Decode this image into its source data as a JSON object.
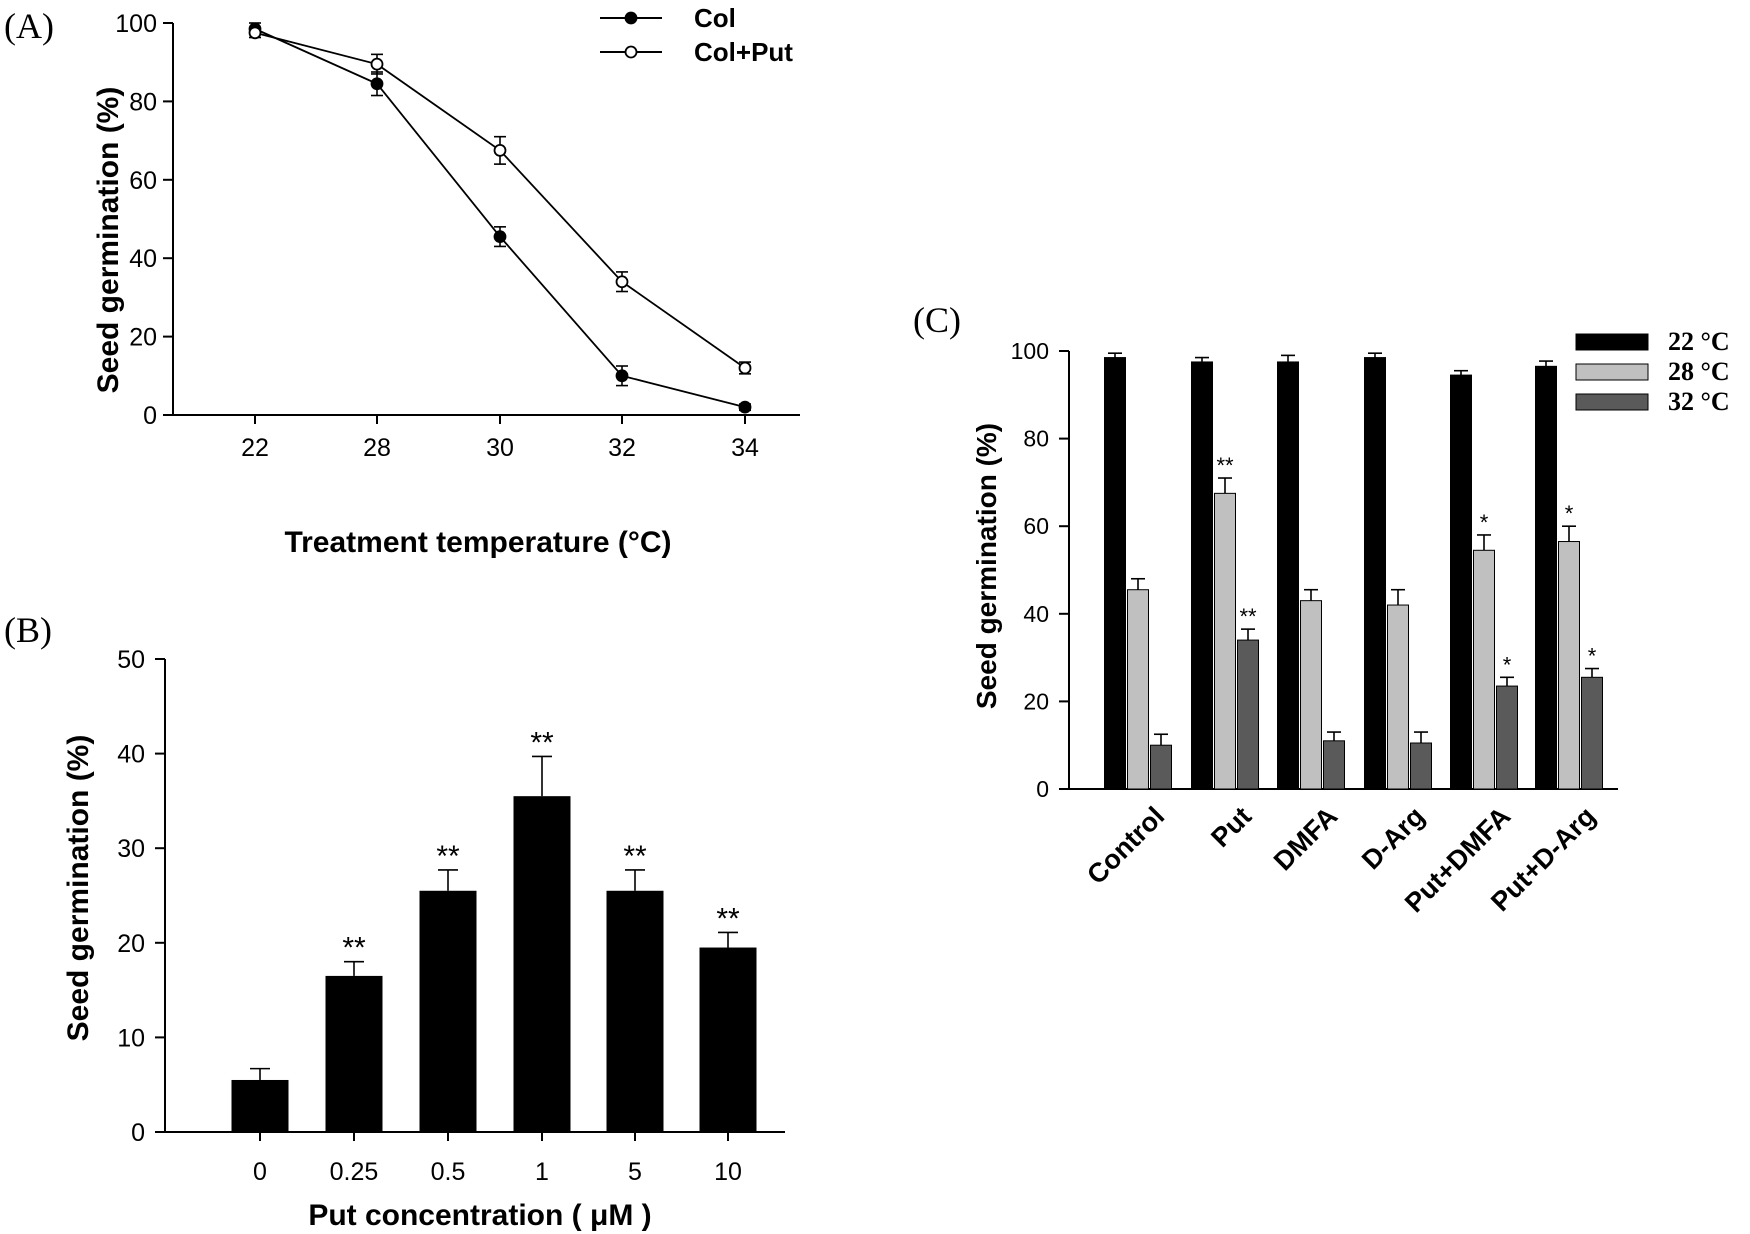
{
  "panels": {
    "a": {
      "label": "(A)"
    },
    "b": {
      "label": "(B)"
    },
    "c": {
      "label": "(C)"
    }
  },
  "chart_data": [
    {
      "panel": "(A)",
      "type": "line",
      "xlabel": "Treatment temperature (°C)",
      "ylabel": "Seed germination (%)",
      "x": [
        "22",
        "28",
        "30",
        "32",
        "34"
      ],
      "ylim": [
        0,
        100
      ],
      "yticks": [
        0,
        20,
        40,
        60,
        80,
        100
      ],
      "legend_position": "top-right",
      "series": [
        {
          "name": "Col",
          "marker": "filled-circle",
          "values": [
            98.5,
            84.5,
            45.5,
            10,
            2
          ],
          "errors": [
            1.5,
            3,
            2.5,
            2.5,
            0.8
          ]
        },
        {
          "name": "Col+Put",
          "marker": "open-circle",
          "values": [
            97.5,
            89.5,
            67.5,
            34,
            12
          ],
          "errors": [
            1.2,
            2.5,
            3.5,
            2.5,
            1.5
          ]
        }
      ]
    },
    {
      "panel": "(B)",
      "type": "bar",
      "xlabel": "Put concentration ( μM )",
      "ylabel": "Seed germination (%)",
      "categories": [
        "0",
        "0.25",
        "0.5",
        "1",
        "5",
        "10"
      ],
      "values": [
        5.5,
        16.5,
        25.5,
        35.5,
        25.5,
        19.5
      ],
      "errors": [
        1.2,
        1.5,
        2.2,
        4.2,
        2.2,
        1.6
      ],
      "significance": [
        "",
        "**",
        "**",
        "**",
        "**",
        "**"
      ],
      "ylim": [
        0,
        50
      ],
      "yticks": [
        0,
        10,
        20,
        30,
        40,
        50
      ],
      "color": "#000000"
    },
    {
      "panel": "(C)",
      "type": "bar",
      "ylabel": "Seed germination (%)",
      "categories": [
        "Control",
        "Put",
        "DMFA",
        "D-Arg",
        "Put+DMFA",
        "Put+D-Arg"
      ],
      "ylim": [
        0,
        100
      ],
      "yticks": [
        0,
        20,
        40,
        60,
        80,
        100
      ],
      "legend_position": "top-right",
      "series": [
        {
          "name": "22 °C",
          "color": "#000000",
          "values": [
            98.5,
            97.5,
            97.5,
            98.5,
            94.5,
            96.5
          ],
          "errors": [
            1,
            1,
            1.5,
            1,
            1,
            1.2
          ],
          "significance": [
            "",
            "",
            "",
            "",
            "",
            ""
          ]
        },
        {
          "name": "28 °C",
          "color": "#c0c0c0",
          "values": [
            45.5,
            67.5,
            43,
            42,
            54.5,
            56.5
          ],
          "errors": [
            2.5,
            3.5,
            2.5,
            3.5,
            3.5,
            3.5
          ],
          "significance": [
            "",
            "**",
            "",
            "",
            "*",
            "*"
          ]
        },
        {
          "name": "32 °C",
          "color": "#5a5a5a",
          "values": [
            10,
            34,
            11,
            10.5,
            23.5,
            25.5
          ],
          "errors": [
            2.5,
            2.5,
            2,
            2.5,
            2,
            2
          ],
          "significance": [
            "",
            "**",
            "",
            "",
            "*",
            "*"
          ]
        }
      ]
    }
  ]
}
